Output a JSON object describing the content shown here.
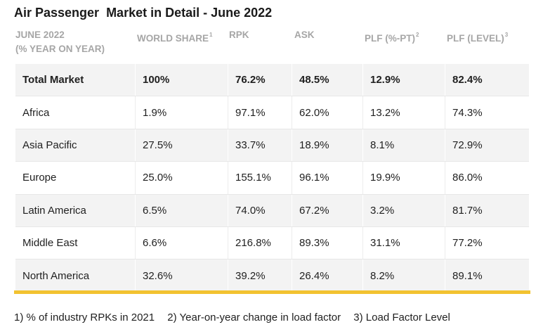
{
  "title": "Air Passenger  Market in Detail - June 2022",
  "header": {
    "period_line1": "JUNE 2022",
    "period_line2": "(% YEAR ON YEAR)",
    "world_share": "WORLD SHARE",
    "world_share_sup": "1",
    "rpk": "RPK",
    "ask": "ASK",
    "plf_pt": "PLF (%-PT)",
    "plf_pt_sup": "2",
    "plf_level": "PLF (LEVEL)",
    "plf_level_sup": "3"
  },
  "rows": [
    {
      "region": "Total Market",
      "world_share": "100%",
      "rpk": "76.2%",
      "ask": "48.5%",
      "plf_pt": "12.9%",
      "plf_level": "82.4%"
    },
    {
      "region": "Africa",
      "world_share": "1.9%",
      "rpk": "97.1%",
      "ask": "62.0%",
      "plf_pt": "13.2%",
      "plf_level": "74.3%"
    },
    {
      "region": "Asia Pacific",
      "world_share": "27.5%",
      "rpk": "33.7%",
      "ask": "18.9%",
      "plf_pt": "8.1%",
      "plf_level": "72.9%"
    },
    {
      "region": "Europe",
      "world_share": "25.0%",
      "rpk": "155.1%",
      "ask": "96.1%",
      "plf_pt": "19.9%",
      "plf_level": "86.0%"
    },
    {
      "region": "Latin America",
      "world_share": "6.5%",
      "rpk": "74.0%",
      "ask": "67.2%",
      "plf_pt": "3.2%",
      "plf_level": "81.7%"
    },
    {
      "region": "Middle East",
      "world_share": "6.6%",
      "rpk": "216.8%",
      "ask": "89.3%",
      "plf_pt": "31.1%",
      "plf_level": "77.2%"
    },
    {
      "region": "North America",
      "world_share": "32.6%",
      "rpk": "39.2%",
      "ask": "26.4%",
      "plf_pt": "8.2%",
      "plf_level": "89.1%"
    }
  ],
  "footnotes": [
    "1) % of industry RPKs in 2021",
    "2) Year-on-year change in load factor",
    "3) Load Factor Level"
  ],
  "colors": {
    "accent_bar": "#f2c230",
    "header_text": "#a6a6a6",
    "alt_row_bg": "#f3f3f3"
  }
}
